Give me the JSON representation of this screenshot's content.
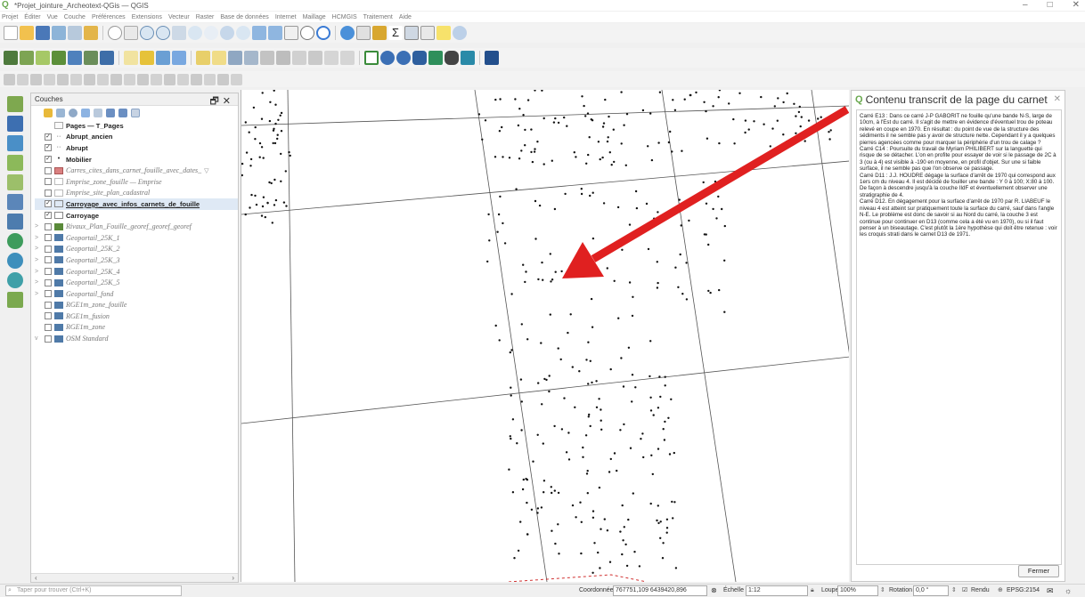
{
  "window": {
    "title": "*Projet_jointure_Archeotext-QGis — QGIS",
    "controls": [
      "–",
      "□",
      "✕"
    ]
  },
  "menu": [
    "Projet",
    "Éditer",
    "Vue",
    "Couche",
    "Préférences",
    "Extensions",
    "Vecteur",
    "Raster",
    "Base de données",
    "Internet",
    "Maillage",
    "HCMGIS",
    "Traitement",
    "Aide"
  ],
  "layers_panel": {
    "title": "Couches",
    "controls": "🗗✕",
    "items": [
      {
        "name": "Pages — T_Pages",
        "checked": false,
        "style": "bold-plain",
        "expander": ""
      },
      {
        "name": "Abrupt_ancien",
        "checked": true,
        "style": "bold",
        "expander": ""
      },
      {
        "name": "Abrupt",
        "checked": true,
        "style": "bold",
        "expander": ""
      },
      {
        "name": "Mobilier",
        "checked": true,
        "style": "bold",
        "expander": ""
      },
      {
        "name": "Carres_cites_dans_carnet_fouille_avec_dates_",
        "checked": false,
        "style": "italic",
        "expander": ""
      },
      {
        "name": "Emprise_zone_fouille — Emprise",
        "checked": false,
        "style": "italic",
        "expander": ""
      },
      {
        "name": "Emprise_site_plan_cadastral",
        "checked": false,
        "style": "italic",
        "expander": ""
      },
      {
        "name": "Carroyage_avec_infos_carnets_de_fouille",
        "checked": true,
        "style": "bold-underline",
        "expander": ""
      },
      {
        "name": "Carroyage",
        "checked": true,
        "style": "bold",
        "expander": ""
      },
      {
        "name": "Rivaux_Plan_Fouille_georef_georef_georef",
        "checked": false,
        "style": "italic",
        "expander": ">"
      },
      {
        "name": "Geoportail_25K_1",
        "checked": false,
        "style": "italic",
        "expander": ">"
      },
      {
        "name": "Geoportail_25K_2",
        "checked": false,
        "style": "italic",
        "expander": ">"
      },
      {
        "name": "Geoportail_25K_3",
        "checked": false,
        "style": "italic",
        "expander": ">"
      },
      {
        "name": "Geoportail_25K_4",
        "checked": false,
        "style": "italic",
        "expander": ">"
      },
      {
        "name": "Geoportail_25K_5",
        "checked": false,
        "style": "italic",
        "expander": ">"
      },
      {
        "name": "Geoportail_fond",
        "checked": false,
        "style": "italic",
        "expander": ">"
      },
      {
        "name": "RGE1m_zone_fouille",
        "checked": false,
        "style": "italic",
        "expander": ""
      },
      {
        "name": "RGE1m_fusion",
        "checked": false,
        "style": "italic",
        "expander": ""
      },
      {
        "name": "RGE1m_zone",
        "checked": false,
        "style": "italic",
        "expander": ""
      },
      {
        "name": "OSM Standard",
        "checked": false,
        "style": "italic",
        "expander": "v"
      }
    ]
  },
  "panel": {
    "title": "Contenu transcrit de la page du carnet",
    "paragraphs": [
      "Carré E13 : Dans ce carré J-P GABORIT ne fouille qu'une bande N-S, large de 10cm, à l'Est du carré. Il s'agit de mettre en évidence d'éventuel trou de poteau relevé en coupe en 1970. En résultat : du point de vue de la structure des sédiments il ne semble pas y avoir de structure nette. Cependant il y a quelques pierres agencées comme pour marquer la périphérie d'un trou de calage ?",
      "Carré C14 : Poursuite du travail de Myriam PHILIBERT sur la languette qui risque de se détacher. L'on en profite pour essayer de voir si le passage de 2C à 3 (ou à 4) est visible à -190 en moyenne, en profil d'objet. Sur une si faible surface, il ne semble pas que l'on observe ce passage.",
      "Carré D11 : J.J. HOUDRE dégage la surface d'arrêt de 1970 qui correspond aux 1ers cm du niveau 4. Il est décidé de fouiller une bande : Y 0 à 100; X:80 à 100. De façon à descendre jusqu'à la couche IIdF et éventuellement observer une stratigraphie de 4.",
      "Carré D12. En dégagement pour la surface d'arrêt de 1970 par R. LIABEUF le niveau 4 est atteint sur pratiquement toute la surface du carré, sauf dans l'angle N-E. Le problème est donc de savoir si au Nord du carré, la couche 3 est continue pour continuer en D13 (comme cela a été vu en 1970), ou si il faut penser à un biseautage. C'est plutôt la 1ère hypothèse qui doit être retenue : voir les croquis strati dans le carnet D13 de 1971."
    ],
    "close_label": "Fermer"
  },
  "statusbar": {
    "search_placeholder": "Taper pour trouver (Ctrl+K)",
    "coord_label": "Coordonnée",
    "coord_value": "767751,109 6439420,896",
    "scale_label": "Échelle",
    "scale_value": "1:12",
    "magnifier_label": "Loupe",
    "magnifier_value": "100%",
    "rotation_label": "Rotation",
    "rotation_value": "0,0 °",
    "render_label": "Rendu",
    "crs_label": "EPSG:2154"
  },
  "colors": {
    "accent_green": "#6aa84f",
    "arrow_red": "#e02020",
    "grid_line": "#555555",
    "dots": "#111111"
  }
}
